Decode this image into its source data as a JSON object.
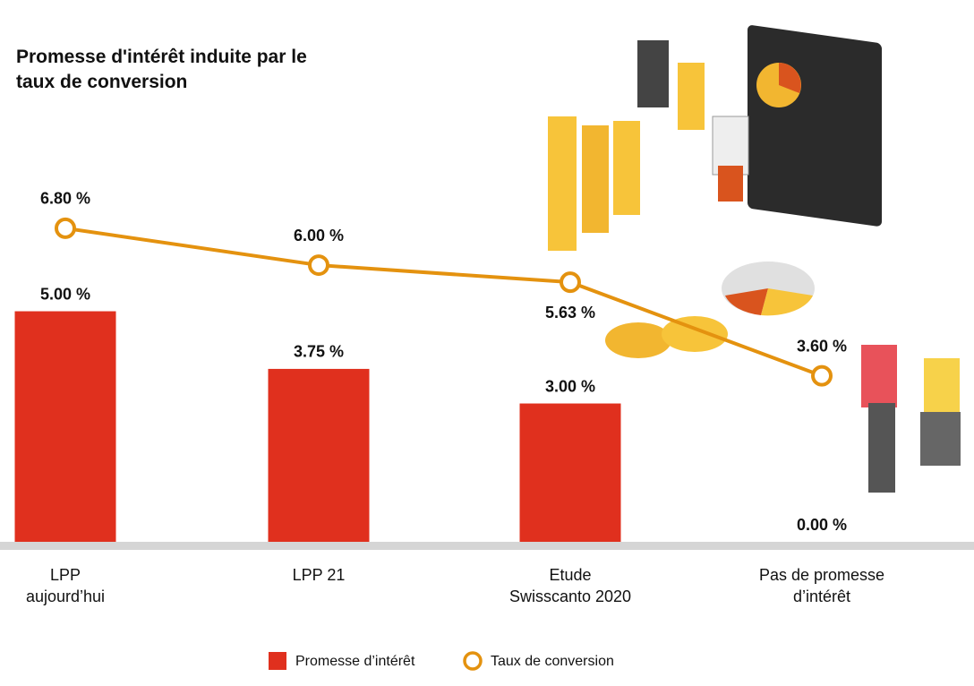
{
  "chart_data": {
    "type": "bar_line",
    "title": "Promesse d'intérêt induite par le taux de conversion",
    "categories": [
      "LPP\naujourd’hui",
      "LPP 21",
      "Etude\nSwisscanto 2020",
      "Pas de promesse\nd’intérêt"
    ],
    "ylim": [
      0,
      11.75
    ],
    "series": [
      {
        "name": "Promesse d’intérêt",
        "type": "bar",
        "color": "#e0301e",
        "values": [
          5,
          3.75,
          3,
          0
        ],
        "value_labels": [
          "5.00 %",
          "3.75 %",
          "3.00 %",
          "0.00 %"
        ]
      },
      {
        "name": "Taux de conversion",
        "type": "line",
        "color": "#e4920f",
        "values": [
          6.8,
          6,
          5.63,
          3.6
        ],
        "value_labels": [
          "6.80 %",
          "6.00 %",
          "5.63 %",
          "3.60 %"
        ]
      }
    ]
  }
}
